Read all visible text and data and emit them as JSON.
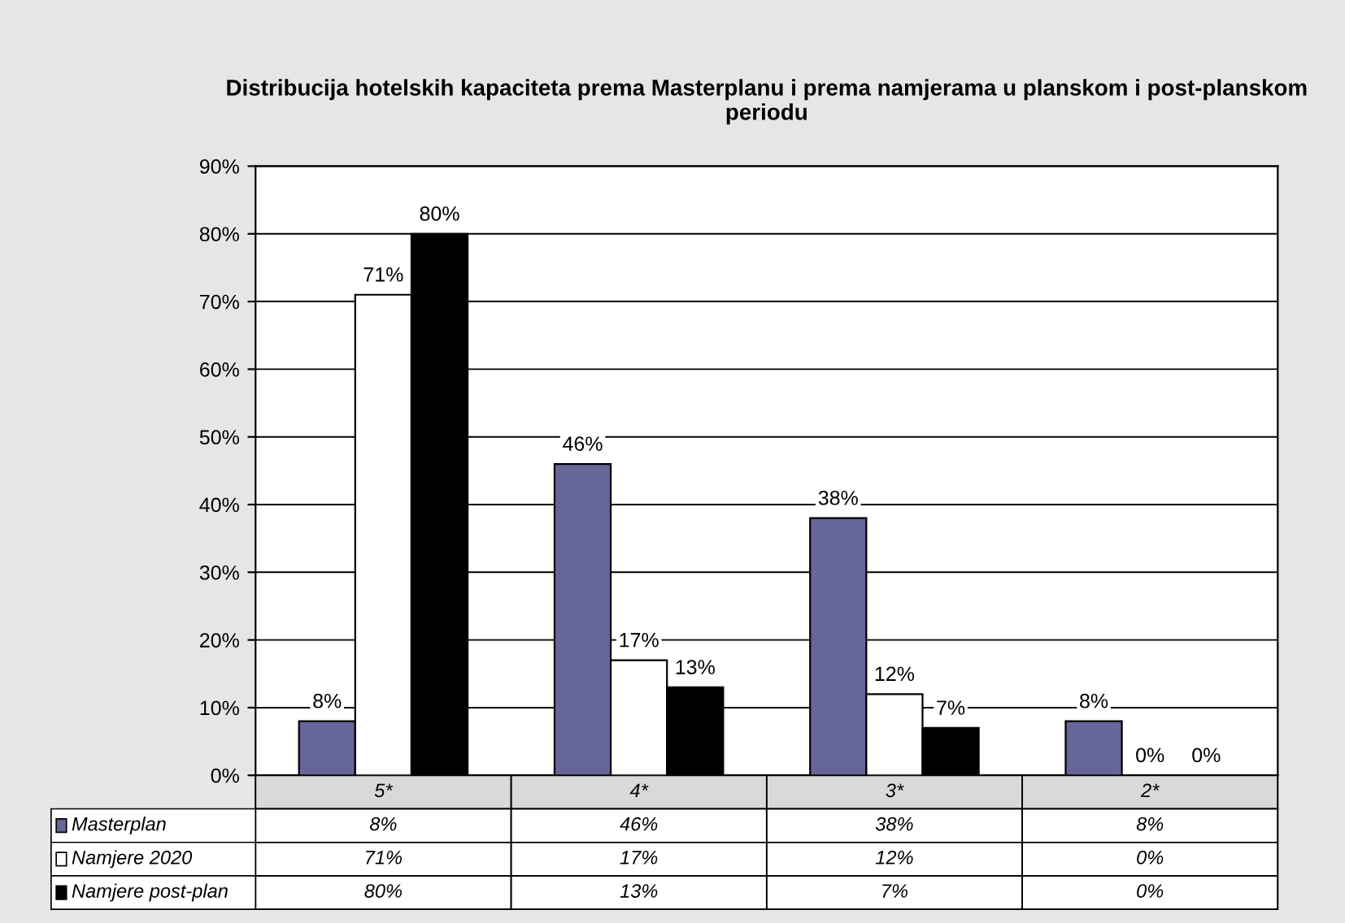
{
  "chart_data": {
    "type": "bar",
    "title": "Distribucija hotelskih kapaciteta prema Masterplanu i prema namjerama u planskom i post-planskom periodu",
    "categories": [
      "5*",
      "4*",
      "3*",
      "2*"
    ],
    "series": [
      {
        "name": "Masterplan",
        "color": "#666699",
        "values": [
          8,
          46,
          38,
          8
        ],
        "value_labels": [
          "8%",
          "46%",
          "38%",
          "8%"
        ]
      },
      {
        "name": "Namjere 2020",
        "color": "#ffffff",
        "values": [
          71,
          17,
          12,
          0
        ],
        "value_labels": [
          "71%",
          "17%",
          "12%",
          "0%"
        ]
      },
      {
        "name": "Namjere post-plan",
        "color": "#000000",
        "values": [
          80,
          13,
          7,
          0
        ],
        "value_labels": [
          "80%",
          "13%",
          "7%",
          "0%"
        ]
      }
    ],
    "ylim": [
      0,
      90
    ],
    "yticks": [
      {
        "value": 0,
        "label": "0%"
      },
      {
        "value": 10,
        "label": "10%"
      },
      {
        "value": 20,
        "label": "20%"
      },
      {
        "value": 30,
        "label": "30%"
      },
      {
        "value": 40,
        "label": "40%"
      },
      {
        "value": 50,
        "label": "50%"
      },
      {
        "value": 60,
        "label": "60%"
      },
      {
        "value": 70,
        "label": "70%"
      },
      {
        "value": 80,
        "label": "80%"
      },
      {
        "value": 90,
        "label": "90%"
      }
    ],
    "grid": "y",
    "legend": "bottom"
  }
}
